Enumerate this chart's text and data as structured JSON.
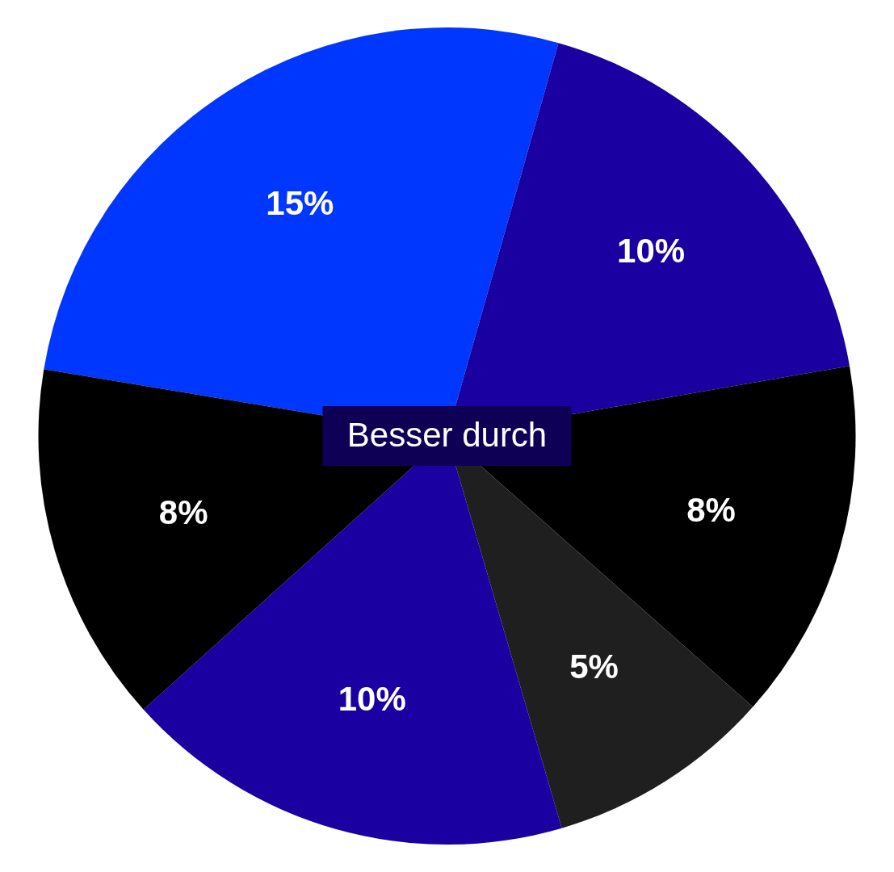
{
  "chart_data": {
    "type": "pie",
    "title": "Besser durch",
    "categories": [
      null,
      null,
      null,
      null,
      null,
      null
    ],
    "values": [
      15,
      10,
      8,
      5,
      10,
      8
    ],
    "value_labels": [
      "15%",
      "10%",
      "8%",
      "5%",
      "10%",
      "8%"
    ],
    "colors": [
      "#0037ff",
      "#1a00a0",
      "#000000",
      "#1f1f1f",
      "#1a00a0",
      "#000000"
    ]
  }
}
